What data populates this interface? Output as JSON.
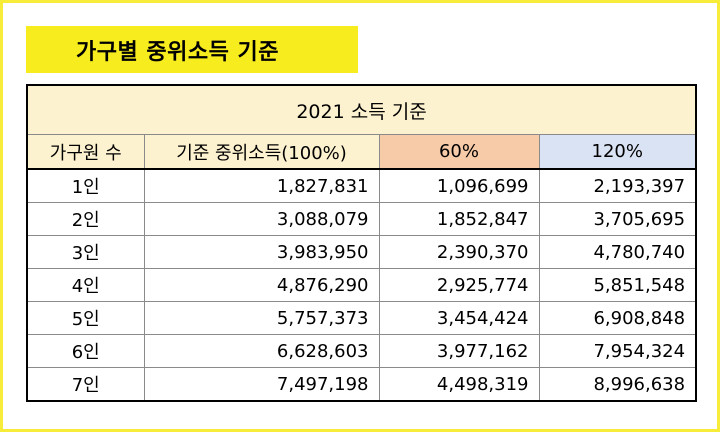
{
  "title": "가구별 중위소득 기준",
  "table": {
    "caption": "2021 소득 기준",
    "columns": [
      "가구원 수",
      "기준 중위소득(100%)",
      "60%",
      "120%"
    ],
    "rows": [
      [
        "1인",
        "1,827,831",
        "1,096,699",
        "2,193,397"
      ],
      [
        "2인",
        "3,088,079",
        "1,852,847",
        "3,705,695"
      ],
      [
        "3인",
        "3,983,950",
        "2,390,370",
        "4,780,740"
      ],
      [
        "4인",
        "4,876,290",
        "2,925,774",
        "5,851,548"
      ],
      [
        "5인",
        "5,757,373",
        "3,454,424",
        "6,908,848"
      ],
      [
        "6인",
        "6,628,603",
        "3,977,162",
        "7,954,324"
      ],
      [
        "7인",
        "7,497,198",
        "4,498,319",
        "8,996,638"
      ]
    ]
  },
  "colors": {
    "title_bg": "#f7ec1e",
    "frame_border": "#f7ec3a",
    "header_bg": "#fdf2cf",
    "col_60_bg": "#f8cba8",
    "col_120_bg": "#dae3f3"
  }
}
